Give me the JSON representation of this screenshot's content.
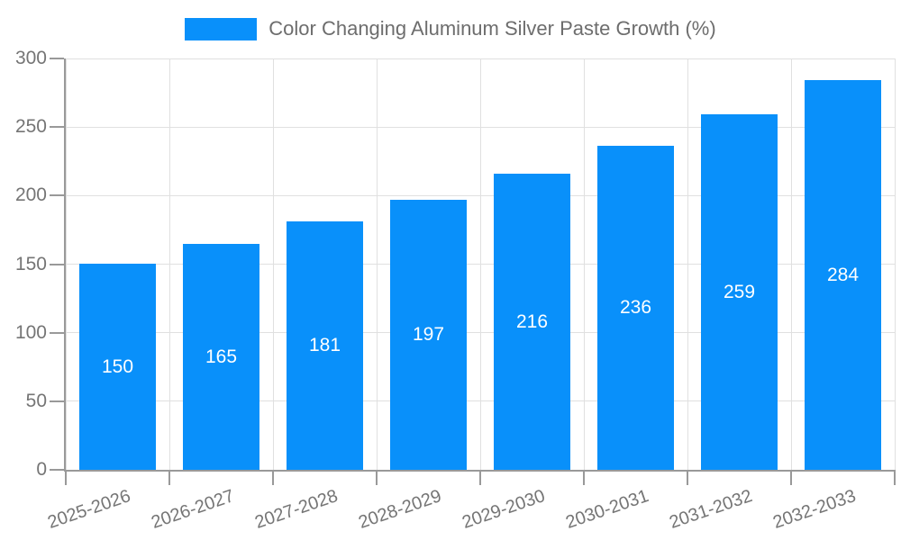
{
  "chart_data": {
    "type": "bar",
    "title": "Color Changing Aluminum Silver Paste Growth (%)",
    "legend": [
      "Color Changing Aluminum Silver Paste Growth (%)"
    ],
    "legend_position": "top-center",
    "categories": [
      "2025-2026",
      "2026-2027",
      "2027-2028",
      "2028-2029",
      "2029-2030",
      "2030-2031",
      "2031-2032",
      "2032-2033"
    ],
    "values": [
      150,
      165,
      181,
      197,
      216,
      236,
      259,
      284
    ],
    "xlabel": "",
    "ylabel": "",
    "ylim": [
      0,
      300
    ],
    "yticks": [
      0,
      50,
      100,
      150,
      200,
      250,
      300
    ],
    "grid": true,
    "bar_label_position": "inside-center",
    "colors": {
      "bar": "#0990FA",
      "bar_label": "#FFFFFF",
      "axis": "#999999",
      "grid": "#E0E0E0",
      "tick_label": "#757575",
      "legend_text": "#6D6D6D",
      "background": "#FFFFFF"
    }
  }
}
